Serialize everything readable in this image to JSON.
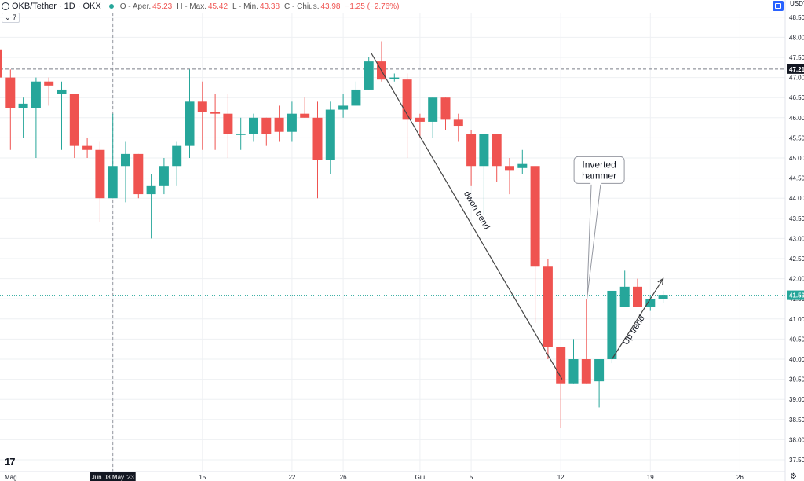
{
  "header": {
    "symbol": "OKB/Tether · 1D · OKX",
    "open_label": "O - Aper.",
    "open_value": "45.23",
    "high_label": "H - Max.",
    "high_value": "45.42",
    "low_label": "L - Min.",
    "low_value": "43.38",
    "close_label": "C - Chius.",
    "close_value": "43.98",
    "change": "−1.25 (−2.76%)"
  },
  "indicator_toggle": "⌄ 7",
  "currency_label": "USDT",
  "colors": {
    "up": "#26a69a",
    "down": "#ef5350",
    "annotation": "#444444",
    "grid": "#eef0f3",
    "price_line": "#26a69a"
  },
  "icons": [
    "okx-logo-icon",
    "status-dot-icon",
    "screenshot-icon",
    "settings-gear-icon",
    "tradingview-logo-icon"
  ],
  "chart_data": {
    "type": "candlestick",
    "y_axis": {
      "range": [
        37.3,
        48.8
      ],
      "ticks": [
        "48.50",
        "48.00",
        "47.50",
        "47.00",
        "46.50",
        "46.00",
        "45.50",
        "45.00",
        "44.50",
        "44.00",
        "43.50",
        "43.00",
        "42.50",
        "42.00",
        "41.50",
        "41.00",
        "40.50",
        "40.00",
        "39.50",
        "39.00",
        "38.50",
        "38.00",
        "37.50"
      ],
      "tick_values": [
        48.5,
        48.0,
        47.5,
        47.0,
        46.5,
        46.0,
        45.5,
        45.0,
        44.5,
        44.0,
        43.5,
        43.0,
        42.5,
        42.0,
        41.5,
        41.0,
        40.5,
        40.0,
        39.5,
        39.0,
        38.5,
        38.0,
        37.5
      ]
    },
    "x_axis": {
      "labels": [
        "Mag",
        "Jun 08 May '23",
        "15",
        "22",
        "26",
        "Giu",
        "5",
        "12",
        "19",
        "26"
      ],
      "label_days": [
        -1,
        8,
        15,
        22,
        26,
        32,
        36,
        43,
        50,
        57
      ]
    },
    "crosshair_x_day": 8,
    "price_levels": [
      {
        "label": "47.21",
        "value": 47.21,
        "style": "dashed"
      },
      {
        "label": "41.59",
        "value": 41.59,
        "style": "dotted"
      }
    ],
    "candles": [
      {
        "d": -1,
        "o": 47.7,
        "h": 47.8,
        "l": 46.3,
        "c": 47.0
      },
      {
        "d": 0,
        "o": 47.0,
        "h": 47.2,
        "l": 45.2,
        "c": 46.25
      },
      {
        "d": 1,
        "o": 46.25,
        "h": 46.5,
        "l": 45.5,
        "c": 46.35
      },
      {
        "d": 2,
        "o": 46.25,
        "h": 47.0,
        "l": 45.0,
        "c": 46.9
      },
      {
        "d": 3,
        "o": 46.9,
        "h": 47.0,
        "l": 46.3,
        "c": 46.8
      },
      {
        "d": 4,
        "o": 46.6,
        "h": 46.9,
        "l": 45.2,
        "c": 46.7
      },
      {
        "d": 5,
        "o": 46.6,
        "h": 46.6,
        "l": 45.0,
        "c": 45.3
      },
      {
        "d": 6,
        "o": 45.3,
        "h": 45.5,
        "l": 45.0,
        "c": 45.2
      },
      {
        "d": 7,
        "o": 45.2,
        "h": 45.4,
        "l": 43.4,
        "c": 44.0
      },
      {
        "d": 8,
        "o": 44.0,
        "h": 46.1,
        "l": 44.0,
        "c": 44.8
      },
      {
        "d": 9,
        "o": 44.8,
        "h": 45.4,
        "l": 43.9,
        "c": 45.1
      },
      {
        "d": 10,
        "o": 45.1,
        "h": 45.1,
        "l": 44.0,
        "c": 44.1
      },
      {
        "d": 11,
        "o": 44.1,
        "h": 44.6,
        "l": 43.0,
        "c": 44.3
      },
      {
        "d": 12,
        "o": 44.3,
        "h": 45.0,
        "l": 44.1,
        "c": 44.8
      },
      {
        "d": 13,
        "o": 44.8,
        "h": 45.4,
        "l": 44.3,
        "c": 45.3
      },
      {
        "d": 14,
        "o": 45.3,
        "h": 47.2,
        "l": 45.0,
        "c": 46.4
      },
      {
        "d": 15,
        "o": 46.4,
        "h": 46.9,
        "l": 45.2,
        "c": 46.15
      },
      {
        "d": 16,
        "o": 46.15,
        "h": 46.6,
        "l": 45.2,
        "c": 46.1
      },
      {
        "d": 17,
        "o": 46.1,
        "h": 46.6,
        "l": 45.0,
        "c": 45.6
      },
      {
        "d": 18,
        "o": 45.6,
        "h": 46.0,
        "l": 45.2,
        "c": 45.6
      },
      {
        "d": 19,
        "o": 45.6,
        "h": 46.1,
        "l": 45.4,
        "c": 46.0
      },
      {
        "d": 20,
        "o": 46.0,
        "h": 46.0,
        "l": 45.3,
        "c": 45.6
      },
      {
        "d": 21,
        "o": 46.0,
        "h": 46.3,
        "l": 45.4,
        "c": 45.65
      },
      {
        "d": 22,
        "o": 45.65,
        "h": 46.4,
        "l": 45.4,
        "c": 46.1
      },
      {
        "d": 23,
        "o": 46.1,
        "h": 46.5,
        "l": 46.0,
        "c": 46.0
      },
      {
        "d": 24,
        "o": 46.0,
        "h": 46.4,
        "l": 44.0,
        "c": 44.95
      },
      {
        "d": 25,
        "o": 44.95,
        "h": 46.4,
        "l": 44.6,
        "c": 46.2
      },
      {
        "d": 26,
        "o": 46.2,
        "h": 46.6,
        "l": 46.0,
        "c": 46.3
      },
      {
        "d": 27,
        "o": 46.3,
        "h": 46.9,
        "l": 46.3,
        "c": 46.7
      },
      {
        "d": 28,
        "o": 46.7,
        "h": 47.5,
        "l": 46.7,
        "c": 47.4
      },
      {
        "d": 29,
        "o": 47.4,
        "h": 47.9,
        "l": 46.9,
        "c": 46.95
      },
      {
        "d": 30,
        "o": 47.0,
        "h": 47.1,
        "l": 46.9,
        "c": 47.0
      },
      {
        "d": 31,
        "o": 46.95,
        "h": 47.1,
        "l": 45.0,
        "c": 45.95
      },
      {
        "d": 32,
        "o": 46.0,
        "h": 46.1,
        "l": 45.5,
        "c": 45.9
      },
      {
        "d": 33,
        "o": 45.9,
        "h": 46.5,
        "l": 45.5,
        "c": 46.5
      },
      {
        "d": 34,
        "o": 46.5,
        "h": 46.5,
        "l": 45.7,
        "c": 45.95
      },
      {
        "d": 35,
        "o": 45.95,
        "h": 46.1,
        "l": 45.4,
        "c": 45.8
      },
      {
        "d": 36,
        "o": 45.6,
        "h": 45.7,
        "l": 44.3,
        "c": 44.8
      },
      {
        "d": 37,
        "o": 44.8,
        "h": 45.6,
        "l": 43.6,
        "c": 45.6
      },
      {
        "d": 38,
        "o": 45.6,
        "h": 45.6,
        "l": 44.4,
        "c": 44.8
      },
      {
        "d": 39,
        "o": 44.8,
        "h": 45.0,
        "l": 44.1,
        "c": 44.7
      },
      {
        "d": 40,
        "o": 44.75,
        "h": 45.2,
        "l": 44.6,
        "c": 44.85
      },
      {
        "d": 41,
        "o": 44.8,
        "h": 44.8,
        "l": 40.9,
        "c": 42.3
      },
      {
        "d": 42,
        "o": 42.3,
        "h": 42.5,
        "l": 40.0,
        "c": 40.3
      },
      {
        "d": 43,
        "o": 40.3,
        "h": 40.3,
        "l": 38.3,
        "c": 39.4
      },
      {
        "d": 44,
        "o": 39.4,
        "h": 40.5,
        "l": 39.4,
        "c": 40.0
      },
      {
        "d": 45,
        "o": 40.0,
        "h": 41.5,
        "l": 39.4,
        "c": 39.4
      },
      {
        "d": 46,
        "o": 39.45,
        "h": 40.0,
        "l": 38.8,
        "c": 40.0
      },
      {
        "d": 47,
        "o": 40.0,
        "h": 41.7,
        "l": 39.9,
        "c": 41.7
      },
      {
        "d": 48,
        "o": 41.3,
        "h": 42.2,
        "l": 41.3,
        "c": 41.8
      },
      {
        "d": 49,
        "o": 41.8,
        "h": 42.0,
        "l": 41.3,
        "c": 41.3
      },
      {
        "d": 50,
        "o": 41.3,
        "h": 41.6,
        "l": 41.2,
        "c": 41.5
      },
      {
        "d": 51,
        "o": 41.5,
        "h": 41.7,
        "l": 41.4,
        "c": 41.6
      }
    ],
    "annotations": {
      "down_trend": {
        "label": "dwon trend",
        "from": {
          "d": 28.2,
          "v": 47.6
        },
        "to": {
          "d": 43.1,
          "v": 39.5
        }
      },
      "up_trend": {
        "label": "Up trend",
        "from": {
          "d": 47.0,
          "v": 40.0
        },
        "to": {
          "d": 51.0,
          "v": 42.0
        }
      },
      "callout": {
        "label_lines": [
          "Inverted",
          "hammer"
        ],
        "point": {
          "d": 45.05,
          "v": 41.5
        },
        "box_center": {
          "d": 46.0,
          "v": 44.7
        }
      }
    }
  }
}
